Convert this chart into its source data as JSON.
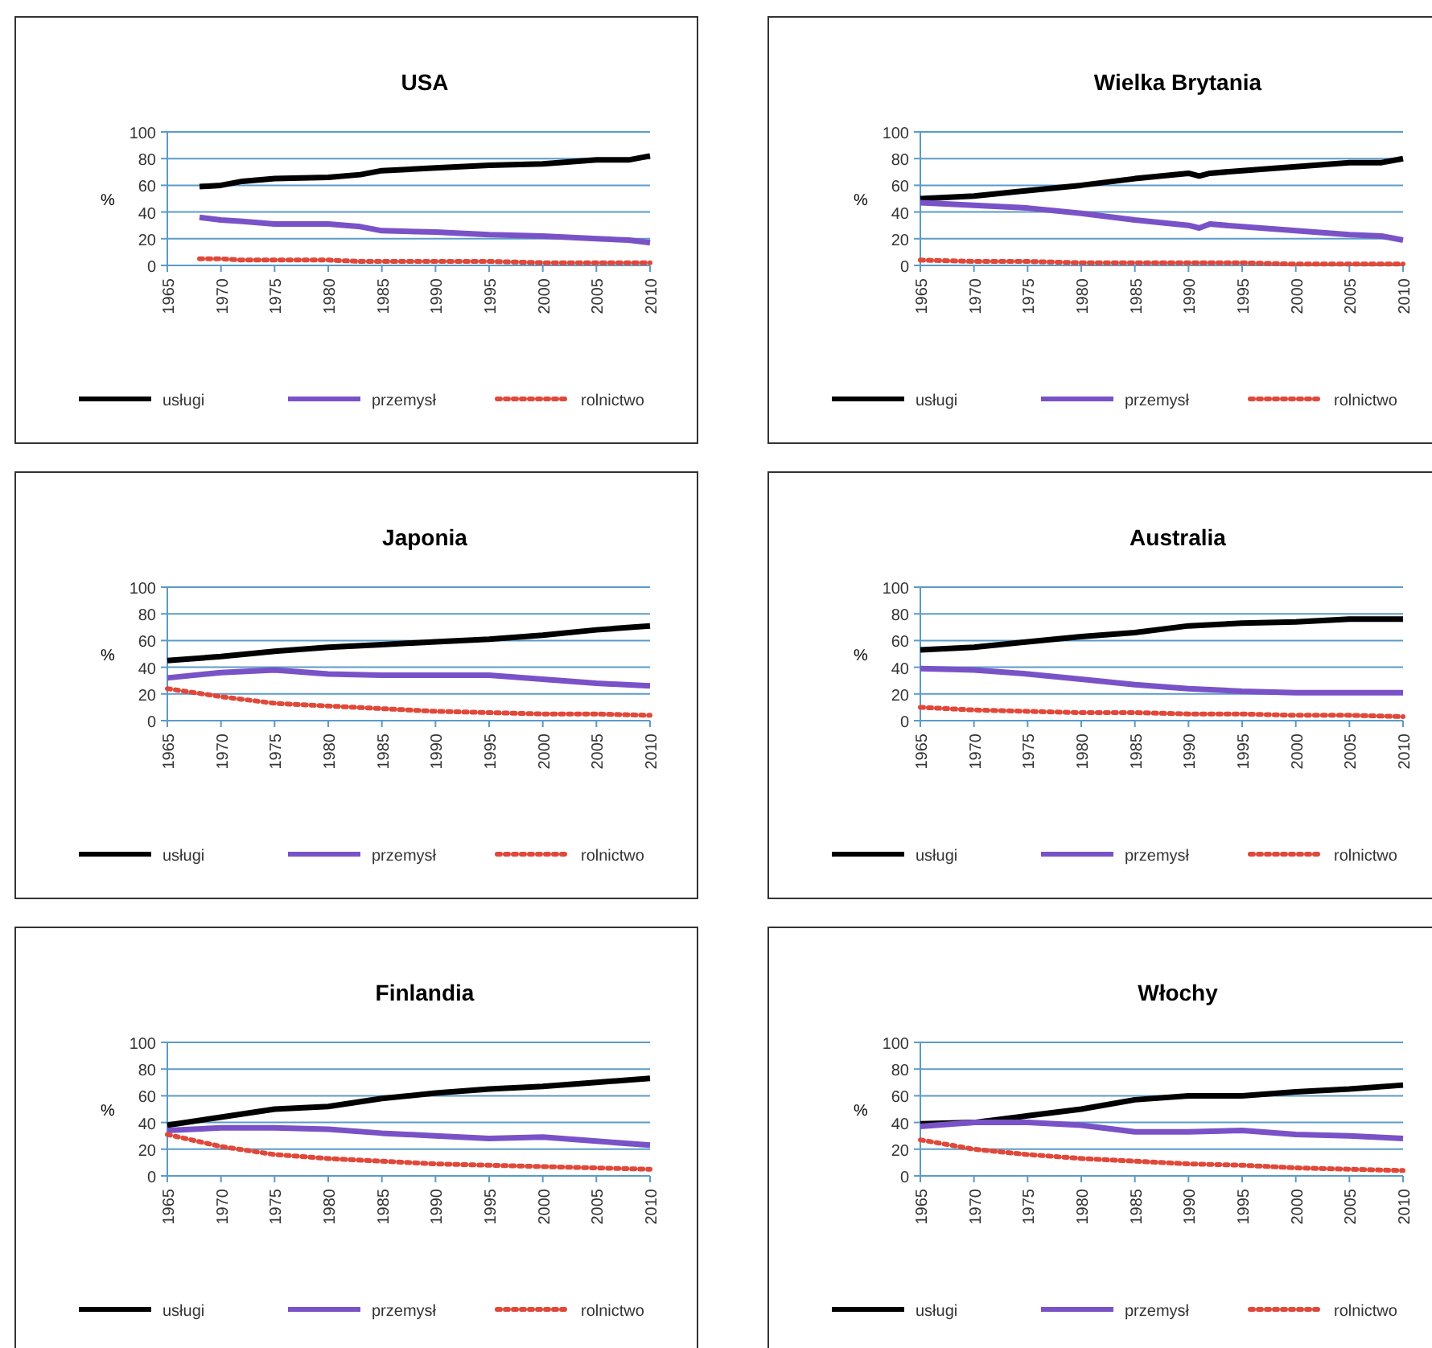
{
  "chart_data": [
    {
      "type": "line",
      "title": "USA",
      "ylabel": "%",
      "x": [
        1968,
        1970,
        1972,
        1975,
        1980,
        1983,
        1985,
        1990,
        1995,
        2000,
        2005,
        2008,
        2010
      ],
      "xlim": [
        1965,
        2010
      ],
      "xticks": [
        1965,
        1970,
        1975,
        1980,
        1985,
        1990,
        1995,
        2000,
        2005,
        2010
      ],
      "ylim": [
        0,
        100
      ],
      "yticks": [
        0,
        20,
        40,
        60,
        80,
        100
      ],
      "grid": "y",
      "legend": "bottom",
      "marker": "none",
      "series": [
        {
          "name": "usługi",
          "color": "#000000",
          "line_style": "solid",
          "values": [
            59,
            60,
            63,
            65,
            66,
            68,
            71,
            73,
            75,
            76,
            79,
            79,
            82
          ]
        },
        {
          "name": "przemysł",
          "color": "#7a52c8",
          "line_style": "solid",
          "values": [
            36,
            34,
            33,
            31,
            31,
            29,
            26,
            25,
            23,
            22,
            20,
            19,
            17
          ]
        },
        {
          "name": "rolnictwo",
          "color": "#e0483a",
          "line_style": "dotted",
          "values": [
            5,
            5,
            4,
            4,
            4,
            3,
            3,
            3,
            3,
            2,
            2,
            2,
            2
          ]
        }
      ]
    },
    {
      "type": "line",
      "title": "Wielka Brytania",
      "ylabel": "%",
      "x": [
        1965,
        1970,
        1975,
        1980,
        1985,
        1990,
        1991,
        1992,
        1995,
        2000,
        2005,
        2008,
        2010
      ],
      "xlim": [
        1965,
        2010
      ],
      "xticks": [
        1965,
        1970,
        1975,
        1980,
        1985,
        1990,
        1995,
        2000,
        2005,
        2010
      ],
      "ylim": [
        0,
        100
      ],
      "yticks": [
        0,
        20,
        40,
        60,
        80,
        100
      ],
      "grid": "y",
      "legend": "bottom",
      "marker": "none",
      "series": [
        {
          "name": "usługi",
          "color": "#000000",
          "line_style": "solid",
          "values": [
            50,
            52,
            56,
            60,
            65,
            69,
            67,
            69,
            71,
            74,
            77,
            77,
            80
          ]
        },
        {
          "name": "przemysł",
          "color": "#7a52c8",
          "line_style": "solid",
          "values": [
            47,
            45,
            43,
            39,
            34,
            30,
            28,
            31,
            29,
            26,
            23,
            22,
            19
          ]
        },
        {
          "name": "rolnictwo",
          "color": "#e0483a",
          "line_style": "dotted",
          "values": [
            4,
            3,
            3,
            2,
            2,
            2,
            2,
            2,
            2,
            1,
            1,
            1,
            1
          ]
        }
      ]
    },
    {
      "type": "line",
      "title": "Japonia",
      "ylabel": "%",
      "x": [
        1965,
        1970,
        1975,
        1980,
        1985,
        1990,
        1995,
        2000,
        2005,
        2010
      ],
      "xlim": [
        1965,
        2010
      ],
      "xticks": [
        1965,
        1970,
        1975,
        1980,
        1985,
        1990,
        1995,
        2000,
        2005,
        2010
      ],
      "ylim": [
        0,
        100
      ],
      "yticks": [
        0,
        20,
        40,
        60,
        80,
        100
      ],
      "grid": "y",
      "legend": "bottom",
      "marker": "none",
      "series": [
        {
          "name": "usługi",
          "color": "#000000",
          "line_style": "solid",
          "values": [
            45,
            48,
            52,
            55,
            57,
            59,
            61,
            64,
            68,
            71
          ]
        },
        {
          "name": "przemysł",
          "color": "#7a52c8",
          "line_style": "solid",
          "values": [
            32,
            36,
            38,
            35,
            34,
            34,
            34,
            31,
            28,
            26
          ]
        },
        {
          "name": "rolnictwo",
          "color": "#e0483a",
          "line_style": "dotted",
          "values": [
            24,
            18,
            13,
            11,
            9,
            7,
            6,
            5,
            5,
            4
          ]
        }
      ]
    },
    {
      "type": "line",
      "title": "Australia",
      "ylabel": "%",
      "x": [
        1965,
        1970,
        1975,
        1980,
        1985,
        1990,
        1995,
        2000,
        2005,
        2010
      ],
      "xlim": [
        1965,
        2010
      ],
      "xticks": [
        1965,
        1970,
        1975,
        1980,
        1985,
        1990,
        1995,
        2000,
        2005,
        2010
      ],
      "ylim": [
        0,
        100
      ],
      "yticks": [
        0,
        20,
        40,
        60,
        80,
        100
      ],
      "grid": "y",
      "legend": "bottom",
      "marker": "none",
      "series": [
        {
          "name": "usługi",
          "color": "#000000",
          "line_style": "solid",
          "values": [
            53,
            55,
            59,
            63,
            66,
            71,
            73,
            74,
            76,
            76
          ]
        },
        {
          "name": "przemysł",
          "color": "#7a52c8",
          "line_style": "solid",
          "values": [
            39,
            38,
            35,
            31,
            27,
            24,
            22,
            21,
            21,
            21
          ]
        },
        {
          "name": "rolnictwo",
          "color": "#e0483a",
          "line_style": "dotted",
          "values": [
            10,
            8,
            7,
            6,
            6,
            5,
            5,
            4,
            4,
            3
          ]
        }
      ]
    },
    {
      "type": "line",
      "title": "Finlandia",
      "ylabel": "%",
      "x": [
        1965,
        1970,
        1975,
        1980,
        1985,
        1990,
        1995,
        2000,
        2005,
        2010
      ],
      "xlim": [
        1965,
        2010
      ],
      "xticks": [
        1965,
        1970,
        1975,
        1980,
        1985,
        1990,
        1995,
        2000,
        2005,
        2010
      ],
      "ylim": [
        0,
        100
      ],
      "yticks": [
        0,
        20,
        40,
        60,
        80,
        100
      ],
      "grid": "y",
      "legend": "bottom",
      "marker": "none",
      "series": [
        {
          "name": "usługi",
          "color": "#000000",
          "line_style": "solid",
          "values": [
            38,
            44,
            50,
            52,
            58,
            62,
            65,
            67,
            70,
            73
          ]
        },
        {
          "name": "przemysł",
          "color": "#7a52c8",
          "line_style": "solid",
          "values": [
            34,
            36,
            36,
            35,
            32,
            30,
            28,
            29,
            26,
            23
          ]
        },
        {
          "name": "rolnictwo",
          "color": "#e0483a",
          "line_style": "dotted",
          "values": [
            31,
            22,
            16,
            13,
            11,
            9,
            8,
            7,
            6,
            5
          ]
        }
      ]
    },
    {
      "type": "line",
      "title": "Włochy",
      "ylabel": "%",
      "x": [
        1965,
        1970,
        1975,
        1980,
        1985,
        1990,
        1995,
        2000,
        2005,
        2010
      ],
      "xlim": [
        1965,
        2010
      ],
      "xticks": [
        1965,
        1970,
        1975,
        1980,
        1985,
        1990,
        1995,
        2000,
        2005,
        2010
      ],
      "ylim": [
        0,
        100
      ],
      "yticks": [
        0,
        20,
        40,
        60,
        80,
        100
      ],
      "grid": "y",
      "legend": "bottom",
      "marker": "none",
      "series": [
        {
          "name": "usługi",
          "color": "#000000",
          "line_style": "solid",
          "values": [
            39,
            40,
            45,
            50,
            57,
            60,
            60,
            63,
            65,
            68
          ]
        },
        {
          "name": "przemysł",
          "color": "#7a52c8",
          "line_style": "solid",
          "values": [
            37,
            40,
            40,
            38,
            33,
            33,
            34,
            31,
            30,
            28
          ]
        },
        {
          "name": "rolnictwo",
          "color": "#e0483a",
          "line_style": "dotted",
          "values": [
            27,
            20,
            16,
            13,
            11,
            9,
            8,
            6,
            5,
            4
          ]
        }
      ]
    }
  ]
}
